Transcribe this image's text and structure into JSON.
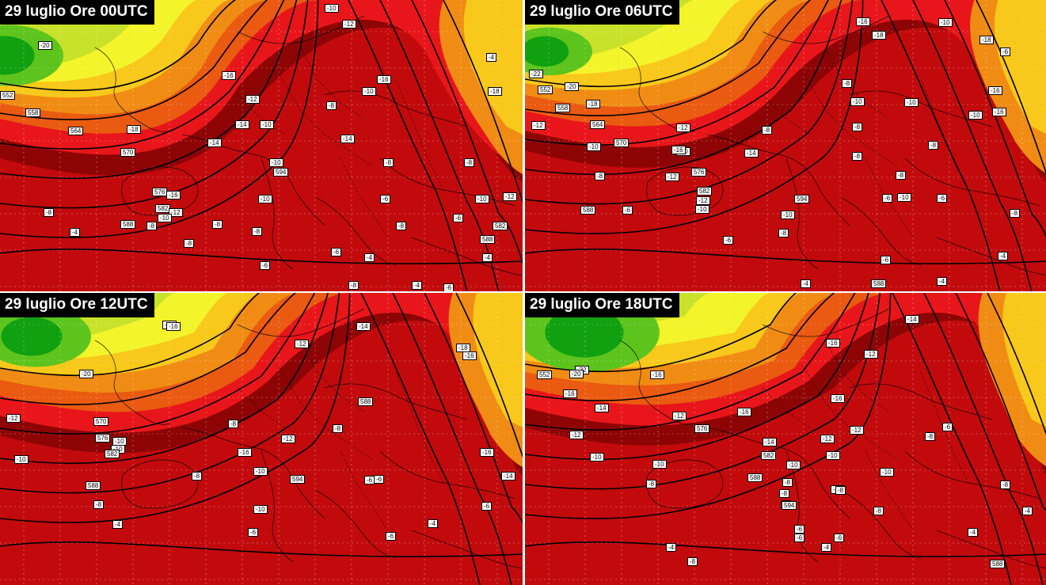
{
  "colors": {
    "green_dark": "#10a010",
    "green": "#5cc41c",
    "yellow_green": "#c8e22a",
    "yellow": "#f4f42a",
    "yellow_orange": "#f8c81a",
    "orange": "#f08c14",
    "orange_red": "#ea5a10",
    "red": "#e8161a",
    "dark_red": "#c20a0c",
    "deep_red": "#8e0404",
    "purple": "#c000c0"
  },
  "panels": [
    {
      "title": "29 luglio Ore 00UTC",
      "labels": [
        "-20",
        "552",
        "558",
        "564",
        "-18",
        "570",
        "-14",
        "-14",
        "576",
        "-16",
        "582",
        "-12",
        "-10",
        "-8",
        "-8",
        "-4",
        "588",
        "-10",
        "-8",
        "594",
        "-8",
        "-6",
        "-8",
        "-6",
        "-6",
        "-8",
        "-10",
        "-10",
        "-10",
        "-12",
        "-14",
        "-16",
        "-18",
        "-12",
        "-10",
        "-8",
        "-6",
        "-4",
        "588",
        "582",
        "-6",
        "-8",
        "-8",
        "-10",
        "-12",
        "-16",
        "-4",
        "-4",
        "-4",
        "-8"
      ]
    },
    {
      "title": "29 luglio Ore 06UTC",
      "labels": [
        "-22",
        "-20",
        "552",
        "-18",
        "558",
        "-12",
        "564",
        "-10",
        "570",
        "-8",
        "588",
        "-6",
        "-12",
        "-10",
        "576",
        "582",
        "-16",
        "-14",
        "-12",
        "-12",
        "-10",
        "594",
        "-10",
        "-8",
        "-6",
        "-8",
        "-8",
        "-8",
        "-10",
        "-10",
        "-16",
        "-18",
        "-16",
        "-10",
        "-8",
        "-6",
        "-4",
        "588",
        "-4",
        "-6",
        "-16",
        "-10",
        "-8",
        "-6",
        "-8",
        "-4",
        "-18",
        "-6",
        "-10",
        "-8"
      ]
    },
    {
      "title": "29 luglio Ore 12UTC",
      "labels": [
        "-18",
        "-20",
        "-16",
        "-16",
        "-12",
        "570",
        "-10",
        "576",
        "-10",
        "582",
        "-8",
        "-8",
        "588",
        "-6",
        "-8",
        "-4",
        "594",
        "-10",
        "-6",
        "-12",
        "-14",
        "-12",
        "-10",
        "-8",
        "-6",
        "-6",
        "-4",
        "-6",
        "-14",
        "588",
        "-16",
        "-18",
        "-16",
        "-10"
      ]
    },
    {
      "title": "29 luglio Ore 18UTC",
      "labels": [
        "552",
        "-22",
        "-20",
        "-16",
        "-16",
        "-14",
        "-12",
        "-10",
        "-12",
        "576",
        "-16",
        "-14",
        "-12",
        "-10",
        "582",
        "-8",
        "588",
        "-6",
        "-8",
        "594",
        "-8",
        "-6",
        "-4",
        "-8",
        "-10",
        "-10",
        "-10",
        "-8",
        "-6",
        "-6",
        "-4",
        "-8",
        "-10",
        "-12",
        "-16",
        "-14",
        "-16",
        "-12",
        "-8",
        "-6",
        "-4",
        "588",
        "-8",
        "-4"
      ]
    }
  ]
}
